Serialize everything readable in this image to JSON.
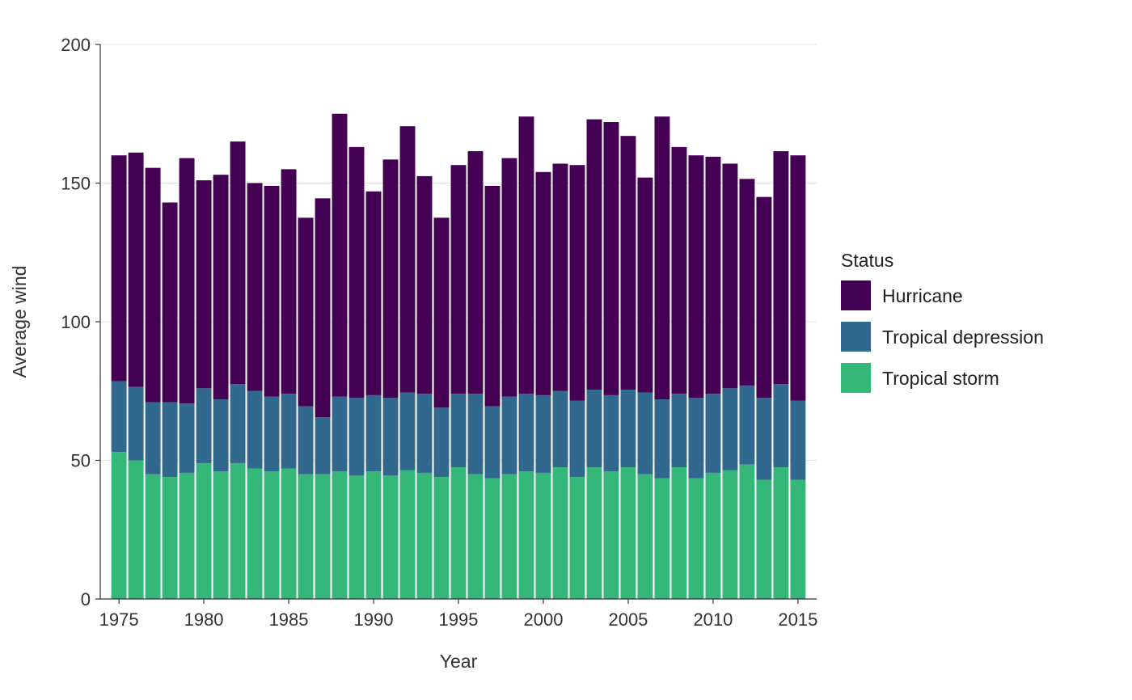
{
  "chart_data": {
    "type": "bar",
    "stacked": true,
    "xlabel": "Year",
    "ylabel": "Average wind",
    "ylim": [
      0,
      200
    ],
    "yticks": [
      0,
      50,
      100,
      150,
      200
    ],
    "xticks": [
      1975,
      1980,
      1985,
      1990,
      1995,
      2000,
      2005,
      2010,
      2015
    ],
    "x_range": [
      1973.9,
      2016.1
    ],
    "grid": "horizontal",
    "legend": {
      "title": "Status",
      "placement": "right",
      "entries": [
        "Hurricane",
        "Tropical depression",
        "Tropical storm"
      ]
    },
    "categories": [
      1975,
      1976,
      1977,
      1978,
      1979,
      1980,
      1981,
      1982,
      1983,
      1984,
      1985,
      1986,
      1987,
      1988,
      1989,
      1990,
      1991,
      1992,
      1993,
      1994,
      1995,
      1996,
      1997,
      1998,
      1999,
      2000,
      2001,
      2002,
      2003,
      2004,
      2005,
      2006,
      2007,
      2008,
      2009,
      2010,
      2011,
      2012,
      2013,
      2014,
      2015
    ],
    "series": [
      {
        "name": "Tropical storm",
        "color": "#35b779",
        "values": [
          53,
          50,
          45,
          44,
          45.5,
          49,
          46,
          49,
          47,
          46,
          47,
          45,
          45,
          46,
          44.5,
          46,
          44.5,
          46.5,
          45.5,
          44,
          47.5,
          45,
          43.5,
          45,
          46,
          45.5,
          47.5,
          44,
          47.5,
          46,
          47.5,
          45,
          43.5,
          47.5,
          43.5,
          45.5,
          46.5,
          48.5,
          43,
          47.5,
          43
        ]
      },
      {
        "name": "Tropical depression",
        "color": "#31688e",
        "values": [
          25.5,
          26.5,
          26,
          27,
          25,
          27,
          26,
          28.5,
          28,
          27,
          27,
          24.5,
          20.5,
          27,
          28,
          27.5,
          28,
          28,
          28.5,
          25,
          26.5,
          29,
          26,
          28,
          28,
          28,
          27.5,
          27.5,
          28,
          27.5,
          28,
          29.5,
          28.5,
          26.5,
          29,
          28.5,
          29.5,
          28.5,
          29.5,
          30,
          28.5
        ]
      },
      {
        "name": "Hurricane",
        "color": "#440154",
        "values": [
          81.5,
          84.5,
          84.5,
          72,
          88.5,
          75,
          81,
          87.5,
          75,
          76,
          81,
          68,
          79,
          102,
          90.5,
          73.5,
          86,
          96,
          78.5,
          68.5,
          82.5,
          87.5,
          79.5,
          86,
          100,
          80.5,
          82,
          85,
          97.5,
          98.5,
          91.5,
          77.5,
          102,
          89,
          87.5,
          85.5,
          81,
          74.5,
          72.5,
          84,
          88.5
        ]
      }
    ]
  }
}
